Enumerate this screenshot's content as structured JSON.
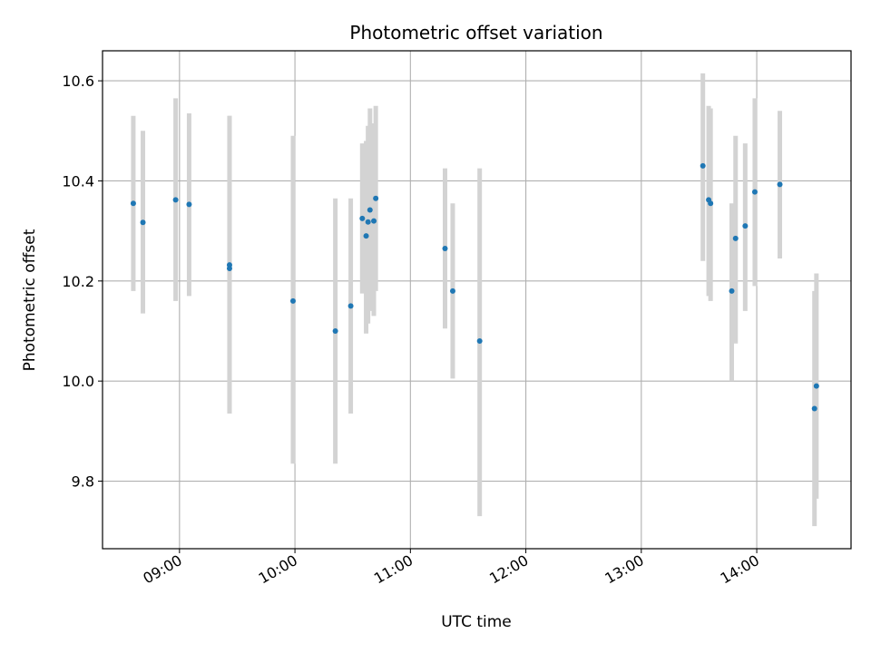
{
  "chart_data": {
    "type": "scatter",
    "title": "Photometric offset variation",
    "xlabel": "UTC time",
    "ylabel": "Photometric offset",
    "grid": true,
    "x_tick_labels": [
      "09:00",
      "10:00",
      "11:00",
      "12:00",
      "13:00",
      "14:00"
    ],
    "y_tick_labels": [
      "9.8",
      "10.0",
      "10.2",
      "10.4",
      "10.6"
    ],
    "xlim": [
      "08:20",
      "14:49"
    ],
    "ylim": [
      9.665,
      10.66
    ],
    "colors": {
      "marker": "#1f77b4",
      "errorbar": "#d3d3d3",
      "grid": "#b0b0b0"
    },
    "series": [
      {
        "points": [
          {
            "x": "08:36",
            "y": 10.355,
            "ylo": 10.18,
            "yhi": 10.53
          },
          {
            "x": "08:41",
            "y": 10.317,
            "ylo": 10.135,
            "yhi": 10.5
          },
          {
            "x": "08:58",
            "y": 10.362,
            "ylo": 10.16,
            "yhi": 10.565
          },
          {
            "x": "09:05",
            "y": 10.353,
            "ylo": 10.17,
            "yhi": 10.535
          },
          {
            "x": "09:26",
            "y": 10.232,
            "ylo": 9.935,
            "yhi": 10.53
          },
          {
            "x": "09:26",
            "y": 10.225,
            "ylo": 9.935,
            "yhi": 10.53
          },
          {
            "x": "09:59",
            "y": 10.16,
            "ylo": 9.835,
            "yhi": 10.49
          },
          {
            "x": "10:21",
            "y": 10.1,
            "ylo": 9.835,
            "yhi": 10.365
          },
          {
            "x": "10:29",
            "y": 10.15,
            "ylo": 9.935,
            "yhi": 10.365
          },
          {
            "x": "10:35",
            "y": 10.325,
            "ylo": 10.175,
            "yhi": 10.475
          },
          {
            "x": "10:37",
            "y": 10.29,
            "ylo": 10.095,
            "yhi": 10.48
          },
          {
            "x": "10:38",
            "y": 10.318,
            "ylo": 10.115,
            "yhi": 10.51
          },
          {
            "x": "10:39",
            "y": 10.342,
            "ylo": 10.14,
            "yhi": 10.545
          },
          {
            "x": "10:41",
            "y": 10.32,
            "ylo": 10.13,
            "yhi": 10.515
          },
          {
            "x": "10:42",
            "y": 10.365,
            "ylo": 10.18,
            "yhi": 10.55
          },
          {
            "x": "11:18",
            "y": 10.265,
            "ylo": 10.105,
            "yhi": 10.425
          },
          {
            "x": "11:22",
            "y": 10.18,
            "ylo": 10.005,
            "yhi": 10.355
          },
          {
            "x": "11:36",
            "y": 10.08,
            "ylo": 9.73,
            "yhi": 10.425
          },
          {
            "x": "13:32",
            "y": 10.43,
            "ylo": 10.24,
            "yhi": 10.615
          },
          {
            "x": "13:35",
            "y": 10.362,
            "ylo": 10.17,
            "yhi": 10.55
          },
          {
            "x": "13:36",
            "y": 10.355,
            "ylo": 10.16,
            "yhi": 10.545
          },
          {
            "x": "13:47",
            "y": 10.18,
            "ylo": 10.0,
            "yhi": 10.355
          },
          {
            "x": "13:49",
            "y": 10.285,
            "ylo": 10.075,
            "yhi": 10.49
          },
          {
            "x": "13:54",
            "y": 10.31,
            "ylo": 10.14,
            "yhi": 10.475
          },
          {
            "x": "13:59",
            "y": 10.378,
            "ylo": 10.19,
            "yhi": 10.565
          },
          {
            "x": "14:12",
            "y": 10.393,
            "ylo": 10.245,
            "yhi": 10.54
          },
          {
            "x": "14:30",
            "y": 9.945,
            "ylo": 9.71,
            "yhi": 10.18
          },
          {
            "x": "14:31",
            "y": 9.99,
            "ylo": 9.765,
            "yhi": 10.215
          }
        ]
      }
    ]
  }
}
